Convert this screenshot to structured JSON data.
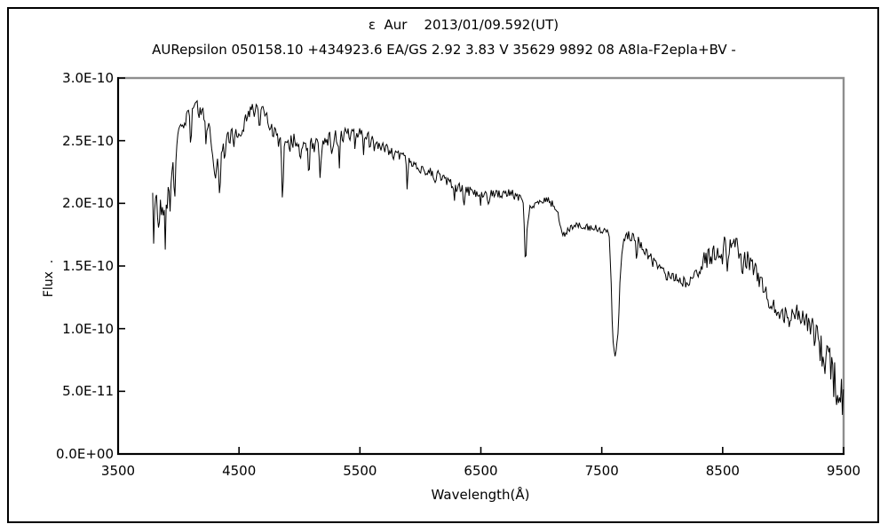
{
  "window": {
    "background": "#ffffff",
    "frame_border_color": "#000000",
    "plot_frame_color": "#8e8e8e",
    "axis_color": "#000000",
    "line_color": "#000000"
  },
  "chart_data": {
    "type": "line",
    "title": "ε  Aur    2013/01/09.592(UT)",
    "subtitle": "AURepsilon 050158.10 +434923.6 EA/GS 2.92 3.83 V 35629 9892 08 A8Ia-F2epIa+BV -",
    "xlabel": "Wavelength(Å)",
    "ylabel": "Flux  .",
    "x_range": [
      3500,
      9500
    ],
    "y_range_flux": [
      "0.0E+00",
      "3.0E-10"
    ],
    "flux_unit": "1E-10",
    "grid": "off",
    "legend": "none",
    "x_ticks": [
      3500,
      4500,
      5500,
      6500,
      7500,
      8500,
      9500
    ],
    "x_tick_labels": [
      "3500",
      "4500",
      "5500",
      "6500",
      "7500",
      "8500",
      "9500"
    ],
    "y_ticks_e10": [
      0,
      0.5,
      1.0,
      1.5,
      2.0,
      2.5,
      3.0
    ],
    "y_tick_labels": [
      "0.0E+00",
      "5.0E-11",
      "1.0E-10",
      "1.5E-10",
      "2.0E-10",
      "2.5E-10",
      "3.0E-10"
    ],
    "data_start_wavelength": 3786,
    "data_end_wavelength": 9500,
    "sample_step_angstrom": 8,
    "noise_seed": 20130109,
    "continuum_envelope_e10": [
      [
        3786,
        1.95
      ],
      [
        3800,
        1.95
      ],
      [
        3830,
        1.96
      ],
      [
        3860,
        1.97
      ],
      [
        3900,
        2.04
      ],
      [
        3935,
        2.18
      ],
      [
        3970,
        2.38
      ],
      [
        4000,
        2.55
      ],
      [
        4040,
        2.66
      ],
      [
        4080,
        2.71
      ],
      [
        4120,
        2.74
      ],
      [
        4160,
        2.76
      ],
      [
        4200,
        2.71
      ],
      [
        4240,
        2.62
      ],
      [
        4280,
        2.46
      ],
      [
        4310,
        2.38
      ],
      [
        4350,
        2.44
      ],
      [
        4400,
        2.5
      ],
      [
        4450,
        2.56
      ],
      [
        4500,
        2.58
      ],
      [
        4550,
        2.65
      ],
      [
        4600,
        2.72
      ],
      [
        4650,
        2.76
      ],
      [
        4700,
        2.73
      ],
      [
        4740,
        2.66
      ],
      [
        4780,
        2.58
      ],
      [
        4820,
        2.52
      ],
      [
        4860,
        2.5
      ],
      [
        4900,
        2.55
      ],
      [
        4950,
        2.5
      ],
      [
        5000,
        2.46
      ],
      [
        5050,
        2.45
      ],
      [
        5100,
        2.48
      ],
      [
        5150,
        2.46
      ],
      [
        5200,
        2.5
      ],
      [
        5250,
        2.52
      ],
      [
        5300,
        2.53
      ],
      [
        5350,
        2.52
      ],
      [
        5400,
        2.55
      ],
      [
        5450,
        2.57
      ],
      [
        5500,
        2.55
      ],
      [
        5550,
        2.52
      ],
      [
        5600,
        2.48
      ],
      [
        5650,
        2.46
      ],
      [
        5700,
        2.44
      ],
      [
        5750,
        2.42
      ],
      [
        5800,
        2.4
      ],
      [
        5850,
        2.38
      ],
      [
        5900,
        2.35
      ],
      [
        5950,
        2.31
      ],
      [
        6000,
        2.28
      ],
      [
        6050,
        2.26
      ],
      [
        6100,
        2.24
      ],
      [
        6150,
        2.22
      ],
      [
        6200,
        2.19
      ],
      [
        6250,
        2.16
      ],
      [
        6300,
        2.13
      ],
      [
        6350,
        2.11
      ],
      [
        6400,
        2.1
      ],
      [
        6450,
        2.09
      ],
      [
        6500,
        2.09
      ],
      [
        6550,
        2.08
      ],
      [
        6600,
        2.07
      ],
      [
        6650,
        2.08
      ],
      [
        6700,
        2.09
      ],
      [
        6750,
        2.08
      ],
      [
        6800,
        2.06
      ],
      [
        6830,
        2.05
      ],
      [
        6850,
        2.03
      ],
      [
        6860,
        1.78
      ],
      [
        6868,
        1.52
      ],
      [
        6876,
        1.63
      ],
      [
        6886,
        1.85
      ],
      [
        6900,
        1.95
      ],
      [
        6930,
        1.99
      ],
      [
        6970,
        2.01
      ],
      [
        7010,
        2.03
      ],
      [
        7060,
        2.02
      ],
      [
        7100,
        1.99
      ],
      [
        7140,
        1.91
      ],
      [
        7180,
        1.76
      ],
      [
        7210,
        1.77
      ],
      [
        7240,
        1.81
      ],
      [
        7280,
        1.83
      ],
      [
        7320,
        1.82
      ],
      [
        7360,
        1.81
      ],
      [
        7400,
        1.81
      ],
      [
        7450,
        1.8
      ],
      [
        7500,
        1.79
      ],
      [
        7540,
        1.78
      ],
      [
        7560,
        1.76
      ],
      [
        7575,
        1.45
      ],
      [
        7590,
        0.95
      ],
      [
        7605,
        0.78
      ],
      [
        7620,
        0.83
      ],
      [
        7635,
        0.97
      ],
      [
        7650,
        1.35
      ],
      [
        7665,
        1.6
      ],
      [
        7680,
        1.7
      ],
      [
        7700,
        1.74
      ],
      [
        7730,
        1.74
      ],
      [
        7760,
        1.73
      ],
      [
        7800,
        1.71
      ],
      [
        7840,
        1.66
      ],
      [
        7880,
        1.6
      ],
      [
        7920,
        1.54
      ],
      [
        7960,
        1.49
      ],
      [
        8000,
        1.45
      ],
      [
        8050,
        1.42
      ],
      [
        8100,
        1.4
      ],
      [
        8150,
        1.38
      ],
      [
        8200,
        1.37
      ],
      [
        8250,
        1.41
      ],
      [
        8300,
        1.46
      ],
      [
        8350,
        1.53
      ],
      [
        8400,
        1.59
      ],
      [
        8450,
        1.63
      ],
      [
        8500,
        1.66
      ],
      [
        8550,
        1.7
      ],
      [
        8600,
        1.67
      ],
      [
        8650,
        1.61
      ],
      [
        8700,
        1.55
      ],
      [
        8750,
        1.5
      ],
      [
        8800,
        1.41
      ],
      [
        8850,
        1.31
      ],
      [
        8900,
        1.2
      ],
      [
        8950,
        1.13
      ],
      [
        9000,
        1.1
      ],
      [
        9050,
        1.12
      ],
      [
        9100,
        1.13
      ],
      [
        9150,
        1.09
      ],
      [
        9200,
        1.04
      ],
      [
        9250,
        0.95
      ],
      [
        9300,
        0.86
      ],
      [
        9350,
        0.76
      ],
      [
        9400,
        0.66
      ],
      [
        9450,
        0.53
      ],
      [
        9500,
        0.38
      ]
    ],
    "absorption_lines": [
      {
        "center": 3798,
        "depth": 0.2,
        "sigma": 5
      },
      {
        "center": 3835,
        "depth": 0.25,
        "sigma": 5
      },
      {
        "center": 3889,
        "depth": 0.25,
        "sigma": 5
      },
      {
        "center": 3933,
        "depth": 0.2,
        "sigma": 5
      },
      {
        "center": 3968,
        "depth": 0.28,
        "sigma": 6
      },
      {
        "center": 4101,
        "depth": 0.32,
        "sigma": 6
      },
      {
        "center": 4226,
        "depth": 0.18,
        "sigma": 5
      },
      {
        "center": 4300,
        "depth": 0.2,
        "sigma": 8
      },
      {
        "center": 4340,
        "depth": 0.4,
        "sigma": 6
      },
      {
        "center": 4383,
        "depth": 0.18,
        "sigma": 5
      },
      {
        "center": 4455,
        "depth": 0.12,
        "sigma": 5
      },
      {
        "center": 4520,
        "depth": 0.12,
        "sigma": 5
      },
      {
        "center": 4668,
        "depth": 0.12,
        "sigma": 5
      },
      {
        "center": 4861,
        "depth": 0.55,
        "sigma": 6
      },
      {
        "center": 4920,
        "depth": 0.15,
        "sigma": 5
      },
      {
        "center": 5007,
        "depth": 0.18,
        "sigma": 5
      },
      {
        "center": 5080,
        "depth": 0.28,
        "sigma": 5
      },
      {
        "center": 5170,
        "depth": 0.3,
        "sigma": 6
      },
      {
        "center": 5270,
        "depth": 0.18,
        "sigma": 5
      },
      {
        "center": 5330,
        "depth": 0.18,
        "sigma": 5
      },
      {
        "center": 5460,
        "depth": 0.18,
        "sigma": 5
      },
      {
        "center": 5530,
        "depth": 0.12,
        "sigma": 5
      },
      {
        "center": 5780,
        "depth": 0.1,
        "sigma": 5
      },
      {
        "center": 5890,
        "depth": 0.28,
        "sigma": 5
      },
      {
        "center": 6120,
        "depth": 0.1,
        "sigma": 5
      },
      {
        "center": 6280,
        "depth": 0.14,
        "sigma": 5
      },
      {
        "center": 6360,
        "depth": 0.12,
        "sigma": 5
      },
      {
        "center": 6495,
        "depth": 0.1,
        "sigma": 5
      },
      {
        "center": 6563,
        "depth": 0.12,
        "sigma": 6
      },
      {
        "center": 7790,
        "depth": 0.16,
        "sigma": 5
      },
      {
        "center": 8498,
        "depth": 0.2,
        "sigma": 6
      },
      {
        "center": 8542,
        "depth": 0.26,
        "sigma": 6
      },
      {
        "center": 8662,
        "depth": 0.26,
        "sigma": 6
      },
      {
        "center": 8880,
        "depth": 0.12,
        "sigma": 6
      },
      {
        "center": 9050,
        "depth": 0.1,
        "sigma": 6
      }
    ],
    "noise_segments_e10": [
      {
        "from": 3786,
        "to": 3940,
        "amp": 0.15
      },
      {
        "from": 3940,
        "to": 4400,
        "amp": 0.07
      },
      {
        "from": 4400,
        "to": 5650,
        "amp": 0.065
      },
      {
        "from": 5650,
        "to": 6860,
        "amp": 0.04
      },
      {
        "from": 6860,
        "to": 7560,
        "amp": 0.03
      },
      {
        "from": 7560,
        "to": 7700,
        "amp": 0.02
      },
      {
        "from": 7700,
        "to": 8330,
        "amp": 0.045
      },
      {
        "from": 8330,
        "to": 8740,
        "amp": 0.085
      },
      {
        "from": 8740,
        "to": 9230,
        "amp": 0.08
      },
      {
        "from": 9230,
        "to": 9500,
        "amp": 0.17
      }
    ]
  }
}
